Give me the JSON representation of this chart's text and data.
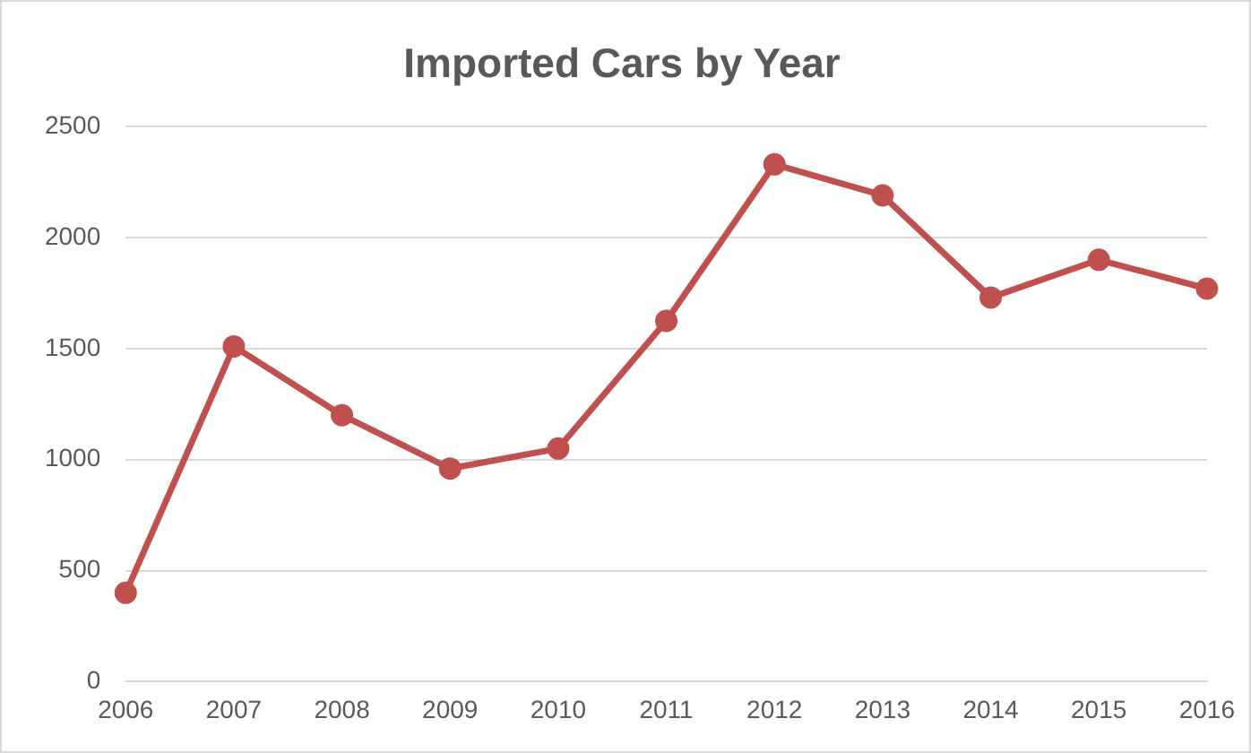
{
  "chart_data": {
    "type": "line",
    "title": "Imported Cars by Year",
    "categories": [
      "2006",
      "2007",
      "2008",
      "2009",
      "2010",
      "2011",
      "2012",
      "2013",
      "2014",
      "2015",
      "2016"
    ],
    "series": [
      {
        "color": "#c0504d",
        "values": [
          400,
          1510,
          1200,
          960,
          1050,
          1625,
          2330,
          2190,
          1730,
          1900,
          1770
        ]
      }
    ],
    "ylim": [
      0,
      2500
    ],
    "yticks": [
      0,
      500,
      1000,
      1500,
      2000,
      2500
    ],
    "grid": "y",
    "legend": false,
    "marker": "circle",
    "line_style": "solid"
  }
}
